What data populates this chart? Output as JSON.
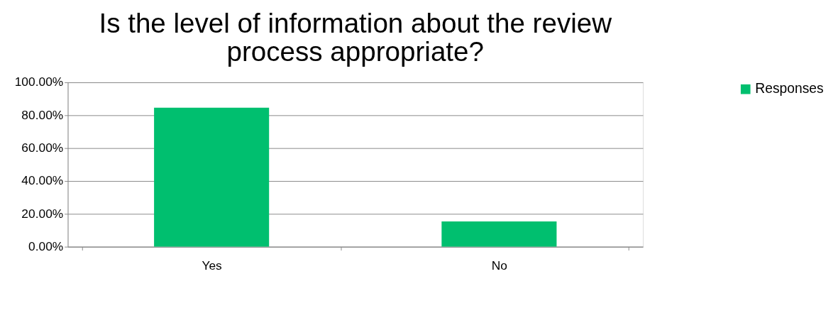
{
  "chart_data": {
    "type": "bar",
    "title": [
      "Is the level of information about the review",
      "process appropriate?"
    ],
    "categories": [
      "Yes",
      "No"
    ],
    "series": [
      {
        "name": "Responses",
        "color": "#00bf6f",
        "values": [
          84.6,
          15.4
        ]
      }
    ],
    "ylim": [
      0,
      100
    ],
    "yticks": [
      {
        "value": 0,
        "label": "0.00%"
      },
      {
        "value": 20,
        "label": "20.00%"
      },
      {
        "value": 40,
        "label": "40.00%"
      },
      {
        "value": 60,
        "label": "60.00%"
      },
      {
        "value": 80,
        "label": "80.00%"
      },
      {
        "value": 100,
        "label": "100.00%"
      }
    ],
    "grid": "y",
    "legend": "right"
  }
}
